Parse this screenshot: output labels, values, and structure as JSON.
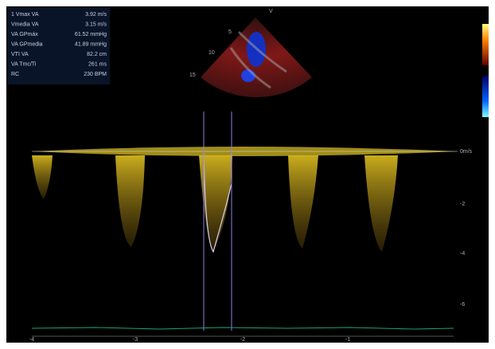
{
  "measurements": [
    {
      "label": "1 Vmax VA",
      "value": "3.92 m/s"
    },
    {
      "label": "Vmedia VA",
      "value": "3.15 m/s"
    },
    {
      "label": "VA GPmáx",
      "value": "61.52 mmHg"
    },
    {
      "label": "VA GPmedia",
      "value": "41.89 mmHg"
    },
    {
      "label": "VTI VA",
      "value": "82.2 cm"
    },
    {
      "label": "VA Tmc/Ti",
      "value": "261 ms"
    },
    {
      "label": "RC",
      "value": "230 BPM"
    }
  ],
  "velocity_scale": [
    "0m/s",
    "-2",
    "-4",
    "-6"
  ],
  "time_scale": [
    "-4",
    "-3",
    "-2",
    "-1"
  ],
  "depth_scale": [
    "5",
    "10",
    "15"
  ]
}
